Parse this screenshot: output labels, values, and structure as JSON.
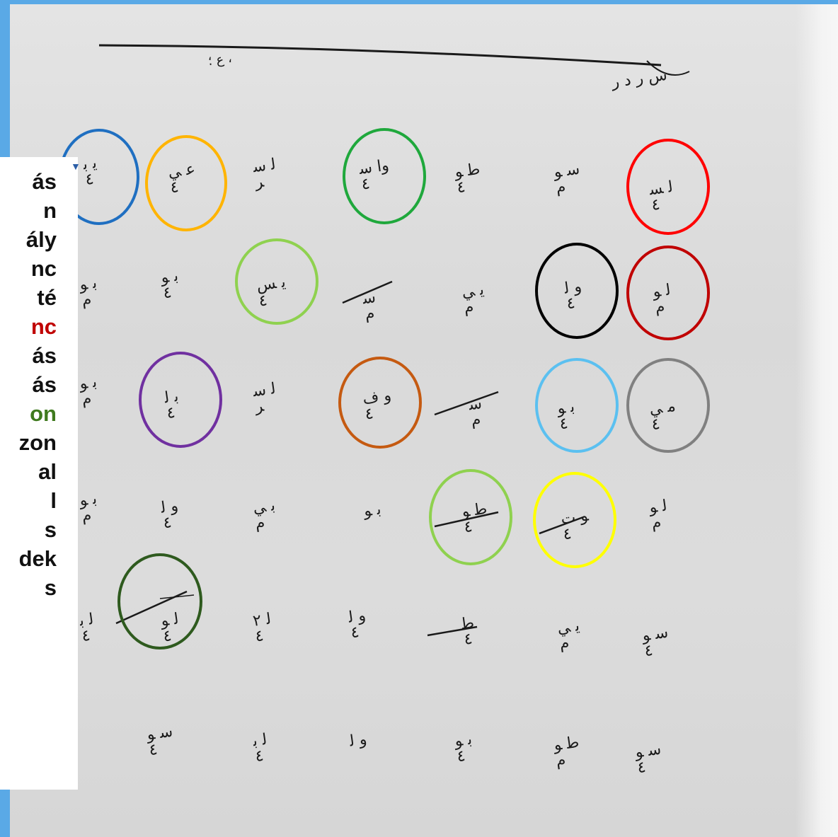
{
  "panel": {
    "words": [
      {
        "text": "ás",
        "color": "#111111"
      },
      {
        "text": "n",
        "color": "#111111"
      },
      {
        "text": "ály",
        "color": "#111111"
      },
      {
        "text": "nc",
        "color": "#111111"
      },
      {
        "text": "té",
        "color": "#111111"
      },
      {
        "text": "nc",
        "color": "#c00000"
      },
      {
        "text": "ás",
        "color": "#111111"
      },
      {
        "text": "ás",
        "color": "#111111"
      },
      {
        "text": "on",
        "color": "#3f7a1e"
      },
      {
        "text": "zon",
        "color": "#111111"
      },
      {
        "text": "al",
        "color": "#111111"
      },
      {
        "text": "l",
        "color": "#111111"
      },
      {
        "text": "s",
        "color": "#111111"
      },
      {
        "text": "dek",
        "color": "#111111"
      },
      {
        "text": "s",
        "color": "#111111"
      }
    ]
  },
  "circle_colors": {
    "blue": "#1f6fc1",
    "orange": "#ffb400",
    "green": "#1fa83c",
    "red": "#ff0000",
    "light_green": "#8fd14f",
    "black": "#000000",
    "dark_red": "#c00000",
    "purple": "#7030a0",
    "burnt_orange": "#c55a11",
    "light_blue": "#5bc0f0",
    "gray": "#808080",
    "yellow": "#ffff00",
    "dark_green": "#2e5a1e"
  }
}
